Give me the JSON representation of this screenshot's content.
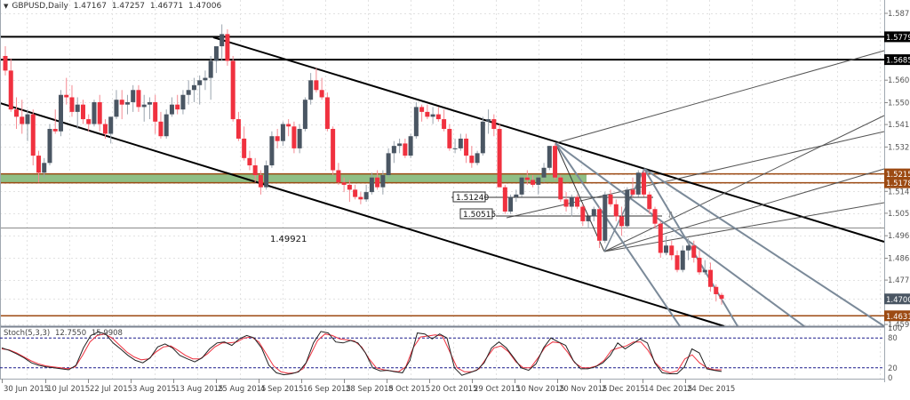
{
  "header": {
    "symbol": "GBPUSD,Daily",
    "open": "1.47167",
    "high": "1.47257",
    "low": "1.46771",
    "close": "1.47006"
  },
  "stochastic": {
    "label": "Stoch(5,3,3)",
    "main": "12.7550",
    "signal": "15.9908",
    "levels": [
      "100",
      "80",
      "20",
      "0"
    ]
  },
  "colors": {
    "bull": "#4a5663",
    "bear": "#f0313f",
    "zone_fill": "#8fbf85",
    "zone_border": "#9c4a12",
    "support_line": "#9c4a12",
    "black_line": "#000000",
    "fork_line": "#7b8a99",
    "stoch_main": "#222222",
    "stoch_signal": "#f0313f",
    "stoch_level": "#1a1a8c",
    "grid": "#e2e2e2",
    "current_price_bg": "#4a5663",
    "label_bg_black": "#000000",
    "label_bg_brown": "#9c4a12"
  },
  "chart_data": {
    "type": "candlestick",
    "title": "GBPUSD,Daily",
    "ohlc_last": {
      "open": 1.47167,
      "high": 1.47257,
      "low": 1.46771,
      "close": 1.47006
    },
    "price_axis": {
      "ticks": [
        "1.58755",
        "1.57790",
        "1.56850",
        "1.56005",
        "1.55080",
        "1.54180",
        "1.53255",
        "1.52150",
        "1.51782",
        "1.51430",
        "1.50530",
        "1.49605",
        "1.48680",
        "1.47780",
        "1.47006",
        "1.46311",
        "1.45955"
      ],
      "range": [
        1.45955,
        1.58755
      ]
    },
    "x_axis": {
      "ticks": [
        "30 Jun 2015",
        "10 Jul 2015",
        "22 Jul 2015",
        "3 Aug 2015",
        "13 Aug 2015",
        "25 Aug 2015",
        "4 Sep 2015",
        "16 Sep 2015",
        "28 Sep 2015",
        "8 Oct 2015",
        "20 Oct 2015",
        "29 Oct 2015",
        "10 Nov 2015",
        "20 Nov 2015",
        "2 Dec 2015",
        "14 Dec 2015",
        "24 Dec 2015"
      ],
      "tick_x": [
        6,
        55,
        103,
        151,
        199,
        247,
        295,
        343,
        391,
        439,
        487,
        535,
        583,
        631,
        679,
        727,
        775
      ]
    },
    "horizontal_levels": [
      {
        "price": "1.57790",
        "style": "black",
        "label": "1.57790"
      },
      {
        "price": "1.56850",
        "style": "black",
        "label": "1.56850"
      },
      {
        "price": "1.52150",
        "style": "brown",
        "label": "1.52150"
      },
      {
        "price": "1.51782",
        "style": "brown",
        "label": "1.51782"
      },
      {
        "price": "1.46311",
        "style": "brown",
        "label": "1.46311"
      },
      {
        "price": "1.49921",
        "style": "gray",
        "label": "1.49921"
      }
    ],
    "support_zone": {
      "top": 1.5215,
      "bottom": 1.51782
    },
    "annotations": [
      {
        "text": "1.51240",
        "type": "price-label"
      },
      {
        "text": "1.50515",
        "type": "price-label"
      },
      {
        "text": "1.49921",
        "type": "text"
      }
    ],
    "current_price": "1.47006",
    "candles": [
      [
        1.57,
        1.574,
        1.562,
        1.564
      ],
      [
        1.564,
        1.569,
        1.547,
        1.548
      ],
      [
        1.548,
        1.553,
        1.54,
        1.545
      ],
      [
        1.545,
        1.552,
        1.538,
        1.542
      ],
      [
        1.542,
        1.548,
        1.535,
        1.546
      ],
      [
        1.546,
        1.548,
        1.525,
        1.529
      ],
      [
        1.529,
        1.531,
        1.518,
        1.522
      ],
      [
        1.522,
        1.528,
        1.52,
        1.526
      ],
      [
        1.526,
        1.542,
        1.525,
        1.54
      ],
      [
        1.54,
        1.548,
        1.538,
        1.539
      ],
      [
        1.539,
        1.556,
        1.537,
        1.554
      ],
      [
        1.554,
        1.561,
        1.55,
        1.553
      ],
      [
        1.553,
        1.558,
        1.545,
        1.547
      ],
      [
        1.547,
        1.553,
        1.54,
        1.55
      ],
      [
        1.55,
        1.552,
        1.542,
        1.544
      ],
      [
        1.544,
        1.546,
        1.539,
        1.542
      ],
      [
        1.542,
        1.552,
        1.541,
        1.551
      ],
      [
        1.551,
        1.554,
        1.539,
        1.542
      ],
      [
        1.542,
        1.544,
        1.536,
        1.538
      ],
      [
        1.538,
        1.545,
        1.534,
        1.545
      ],
      [
        1.545,
        1.556,
        1.544,
        1.552
      ],
      [
        1.552,
        1.556,
        1.544,
        1.55
      ],
      [
        1.55,
        1.554,
        1.546,
        1.551
      ],
      [
        1.551,
        1.558,
        1.547,
        1.556
      ],
      [
        1.556,
        1.558,
        1.547,
        1.549
      ],
      [
        1.549,
        1.554,
        1.543,
        1.55
      ],
      [
        1.55,
        1.553,
        1.544,
        1.551
      ],
      [
        1.551,
        1.554,
        1.538,
        1.543
      ],
      [
        1.543,
        1.547,
        1.536,
        1.537
      ],
      [
        1.537,
        1.548,
        1.536,
        1.546
      ],
      [
        1.546,
        1.553,
        1.545,
        1.55
      ],
      [
        1.55,
        1.554,
        1.546,
        1.548
      ],
      [
        1.548,
        1.556,
        1.546,
        1.554
      ],
      [
        1.554,
        1.56,
        1.55,
        1.556
      ],
      [
        1.556,
        1.561,
        1.551,
        1.558
      ],
      [
        1.558,
        1.562,
        1.55,
        1.56
      ],
      [
        1.56,
        1.564,
        1.556,
        1.561
      ],
      [
        1.561,
        1.57,
        1.552,
        1.568
      ],
      [
        1.568,
        1.572,
        1.563,
        1.574
      ],
      [
        1.574,
        1.583,
        1.568,
        1.579
      ],
      [
        1.579,
        1.581,
        1.566,
        1.568
      ],
      [
        1.568,
        1.57,
        1.543,
        1.544
      ],
      [
        1.544,
        1.547,
        1.535,
        1.536
      ],
      [
        1.536,
        1.541,
        1.527,
        1.528
      ],
      [
        1.528,
        1.531,
        1.523,
        1.525
      ],
      [
        1.525,
        1.528,
        1.518,
        1.521
      ],
      [
        1.521,
        1.523,
        1.513,
        1.516
      ],
      [
        1.516,
        1.527,
        1.515,
        1.525
      ],
      [
        1.525,
        1.539,
        1.524,
        1.537
      ],
      [
        1.537,
        1.54,
        1.532,
        1.535
      ],
      [
        1.535,
        1.543,
        1.533,
        1.542
      ],
      [
        1.542,
        1.544,
        1.537,
        1.541
      ],
      [
        1.541,
        1.543,
        1.53,
        1.532
      ],
      [
        1.532,
        1.542,
        1.53,
        1.54
      ],
      [
        1.54,
        1.553,
        1.539,
        1.552
      ],
      [
        1.552,
        1.563,
        1.55,
        1.56
      ],
      [
        1.56,
        1.565,
        1.555,
        1.556
      ],
      [
        1.556,
        1.561,
        1.552,
        1.553
      ],
      [
        1.553,
        1.555,
        1.539,
        1.54
      ],
      [
        1.54,
        1.541,
        1.521,
        1.523
      ],
      [
        1.523,
        1.526,
        1.517,
        1.518
      ],
      [
        1.518,
        1.52,
        1.514,
        1.517
      ],
      [
        1.517,
        1.519,
        1.51,
        1.515
      ],
      [
        1.515,
        1.517,
        1.511,
        1.512
      ],
      [
        1.512,
        1.514,
        1.509,
        1.511
      ],
      [
        1.511,
        1.517,
        1.51,
        1.514
      ],
      [
        1.514,
        1.522,
        1.513,
        1.52
      ],
      [
        1.52,
        1.523,
        1.515,
        1.516
      ],
      [
        1.516,
        1.523,
        1.513,
        1.521
      ],
      [
        1.521,
        1.532,
        1.52,
        1.53
      ],
      [
        1.53,
        1.535,
        1.526,
        1.533
      ],
      [
        1.533,
        1.536,
        1.53,
        1.534
      ],
      [
        1.534,
        1.536,
        1.528,
        1.529
      ],
      [
        1.529,
        1.538,
        1.528,
        1.537
      ],
      [
        1.537,
        1.551,
        1.536,
        1.549
      ],
      [
        1.549,
        1.55,
        1.543,
        1.547
      ],
      [
        1.547,
        1.55,
        1.544,
        1.545
      ],
      [
        1.545,
        1.549,
        1.542,
        1.546
      ],
      [
        1.546,
        1.549,
        1.543,
        1.544
      ],
      [
        1.544,
        1.548,
        1.539,
        1.54
      ],
      [
        1.54,
        1.542,
        1.531,
        1.532
      ],
      [
        1.532,
        1.536,
        1.53,
        1.532
      ],
      [
        1.532,
        1.538,
        1.531,
        1.536
      ],
      [
        1.536,
        1.538,
        1.526,
        1.529
      ],
      [
        1.529,
        1.533,
        1.524,
        1.526
      ],
      [
        1.526,
        1.531,
        1.525,
        1.53
      ],
      [
        1.53,
        1.545,
        1.529,
        1.543
      ],
      [
        1.543,
        1.548,
        1.538,
        1.544
      ],
      [
        1.544,
        1.546,
        1.537,
        1.54
      ],
      [
        1.54,
        1.542,
        1.52,
        1.516
      ],
      [
        1.516,
        1.517,
        1.505,
        1.506
      ],
      [
        1.506,
        1.513,
        1.505,
        1.512
      ],
      [
        1.512,
        1.515,
        1.51,
        1.513
      ],
      [
        1.513,
        1.521,
        1.512,
        1.52
      ],
      [
        1.52,
        1.523,
        1.517,
        1.519
      ],
      [
        1.519,
        1.521,
        1.516,
        1.517
      ],
      [
        1.517,
        1.521,
        1.513,
        1.52
      ],
      [
        1.52,
        1.526,
        1.518,
        1.524
      ],
      [
        1.524,
        1.533,
        1.523,
        1.533
      ],
      [
        1.533,
        1.534,
        1.519,
        1.52
      ],
      [
        1.52,
        1.521,
        1.51,
        1.511
      ],
      [
        1.511,
        1.514,
        1.506,
        1.508
      ],
      [
        1.508,
        1.513,
        1.504,
        1.512
      ],
      [
        1.512,
        1.513,
        1.507,
        1.508
      ],
      [
        1.508,
        1.509,
        1.5,
        1.502
      ],
      [
        1.502,
        1.503,
        1.499,
        1.504
      ],
      [
        1.504,
        1.508,
        1.502,
        1.507
      ],
      [
        1.507,
        1.508,
        1.491,
        1.494
      ],
      [
        1.494,
        1.514,
        1.493,
        1.513
      ],
      [
        1.513,
        1.515,
        1.508,
        1.509
      ],
      [
        1.509,
        1.511,
        1.502,
        1.504
      ],
      [
        1.504,
        1.508,
        1.496,
        1.5
      ],
      [
        1.5,
        1.516,
        1.499,
        1.515
      ],
      [
        1.515,
        1.52,
        1.512,
        1.513
      ],
      [
        1.513,
        1.523,
        1.512,
        1.522
      ],
      [
        1.522,
        1.523,
        1.512,
        1.513
      ],
      [
        1.513,
        1.514,
        1.505,
        1.507
      ],
      [
        1.507,
        1.508,
        1.499,
        1.501
      ],
      [
        1.501,
        1.502,
        1.487,
        1.489
      ],
      [
        1.489,
        1.496,
        1.488,
        1.492
      ],
      [
        1.492,
        1.494,
        1.486,
        1.488
      ],
      [
        1.488,
        1.49,
        1.481,
        1.482
      ],
      [
        1.482,
        1.492,
        1.481,
        1.49
      ],
      [
        1.49,
        1.495,
        1.486,
        1.492
      ],
      [
        1.492,
        1.494,
        1.485,
        1.487
      ],
      [
        1.487,
        1.49,
        1.48,
        1.481
      ],
      [
        1.481,
        1.486,
        1.48,
        1.482
      ],
      [
        1.482,
        1.485,
        1.473,
        1.475
      ],
      [
        1.475,
        1.476,
        1.469,
        1.472
      ],
      [
        1.4717,
        1.4726,
        1.4677,
        1.4701
      ]
    ],
    "stochastic_series": {
      "main": [
        60,
        55,
        48,
        40,
        30,
        25,
        22,
        20,
        18,
        16,
        25,
        60,
        85,
        92,
        88,
        70,
        58,
        45,
        35,
        30,
        40,
        62,
        68,
        60,
        45,
        38,
        32,
        40,
        58,
        70,
        72,
        65,
        78,
        85,
        80,
        60,
        25,
        10,
        6,
        8,
        12,
        30,
        70,
        93,
        90,
        72,
        70,
        75,
        70,
        50,
        20,
        14,
        15,
        12,
        10,
        35,
        90,
        88,
        78,
        88,
        80,
        20,
        5,
        10,
        15,
        30,
        60,
        72,
        60,
        40,
        20,
        15,
        28,
        60,
        80,
        72,
        65,
        35,
        18,
        18,
        22,
        30,
        45,
        70,
        58,
        68,
        78,
        70,
        30,
        10,
        8,
        8,
        22,
        58,
        50,
        18,
        15,
        12.755
      ],
      "signal": [
        58,
        56,
        50,
        42,
        34,
        28,
        24,
        22,
        20,
        18,
        22,
        45,
        72,
        85,
        88,
        80,
        66,
        52,
        42,
        36,
        38,
        52,
        62,
        64,
        55,
        45,
        38,
        38,
        48,
        62,
        70,
        70,
        72,
        80,
        82,
        72,
        48,
        24,
        12,
        9,
        10,
        18,
        45,
        75,
        88,
        85,
        78,
        76,
        74,
        62,
        38,
        20,
        16,
        14,
        12,
        22,
        60,
        82,
        84,
        86,
        84,
        52,
        20,
        12,
        12,
        18,
        40,
        60,
        64,
        52,
        32,
        20,
        20,
        40,
        62,
        72,
        70,
        52,
        30,
        20,
        20,
        24,
        35,
        55,
        60,
        64,
        72,
        72,
        55,
        30,
        15,
        10,
        14,
        38,
        46,
        30,
        20,
        16,
        15.9908
      ]
    }
  },
  "labels": {
    "price_tags": {
      "t1": "1.51240",
      "t2": "1.50515",
      "t3": "1.49921"
    },
    "axis_right": {
      "a1": "1.58755",
      "a2": "1.57790",
      "a3": "1.56850",
      "a4": "1.56005",
      "a5": "1.55080",
      "a6": "1.54180",
      "a7": "1.53255",
      "a8": "1.52150",
      "a9": "1.51782",
      "a10": "1.51430",
      "a11": "1.50530",
      "a12": "1.49605",
      "a13": "1.48680",
      "a14": "1.47780",
      "a15": "1.47006",
      "a16": "1.46311",
      "a17": "1.45955"
    }
  }
}
